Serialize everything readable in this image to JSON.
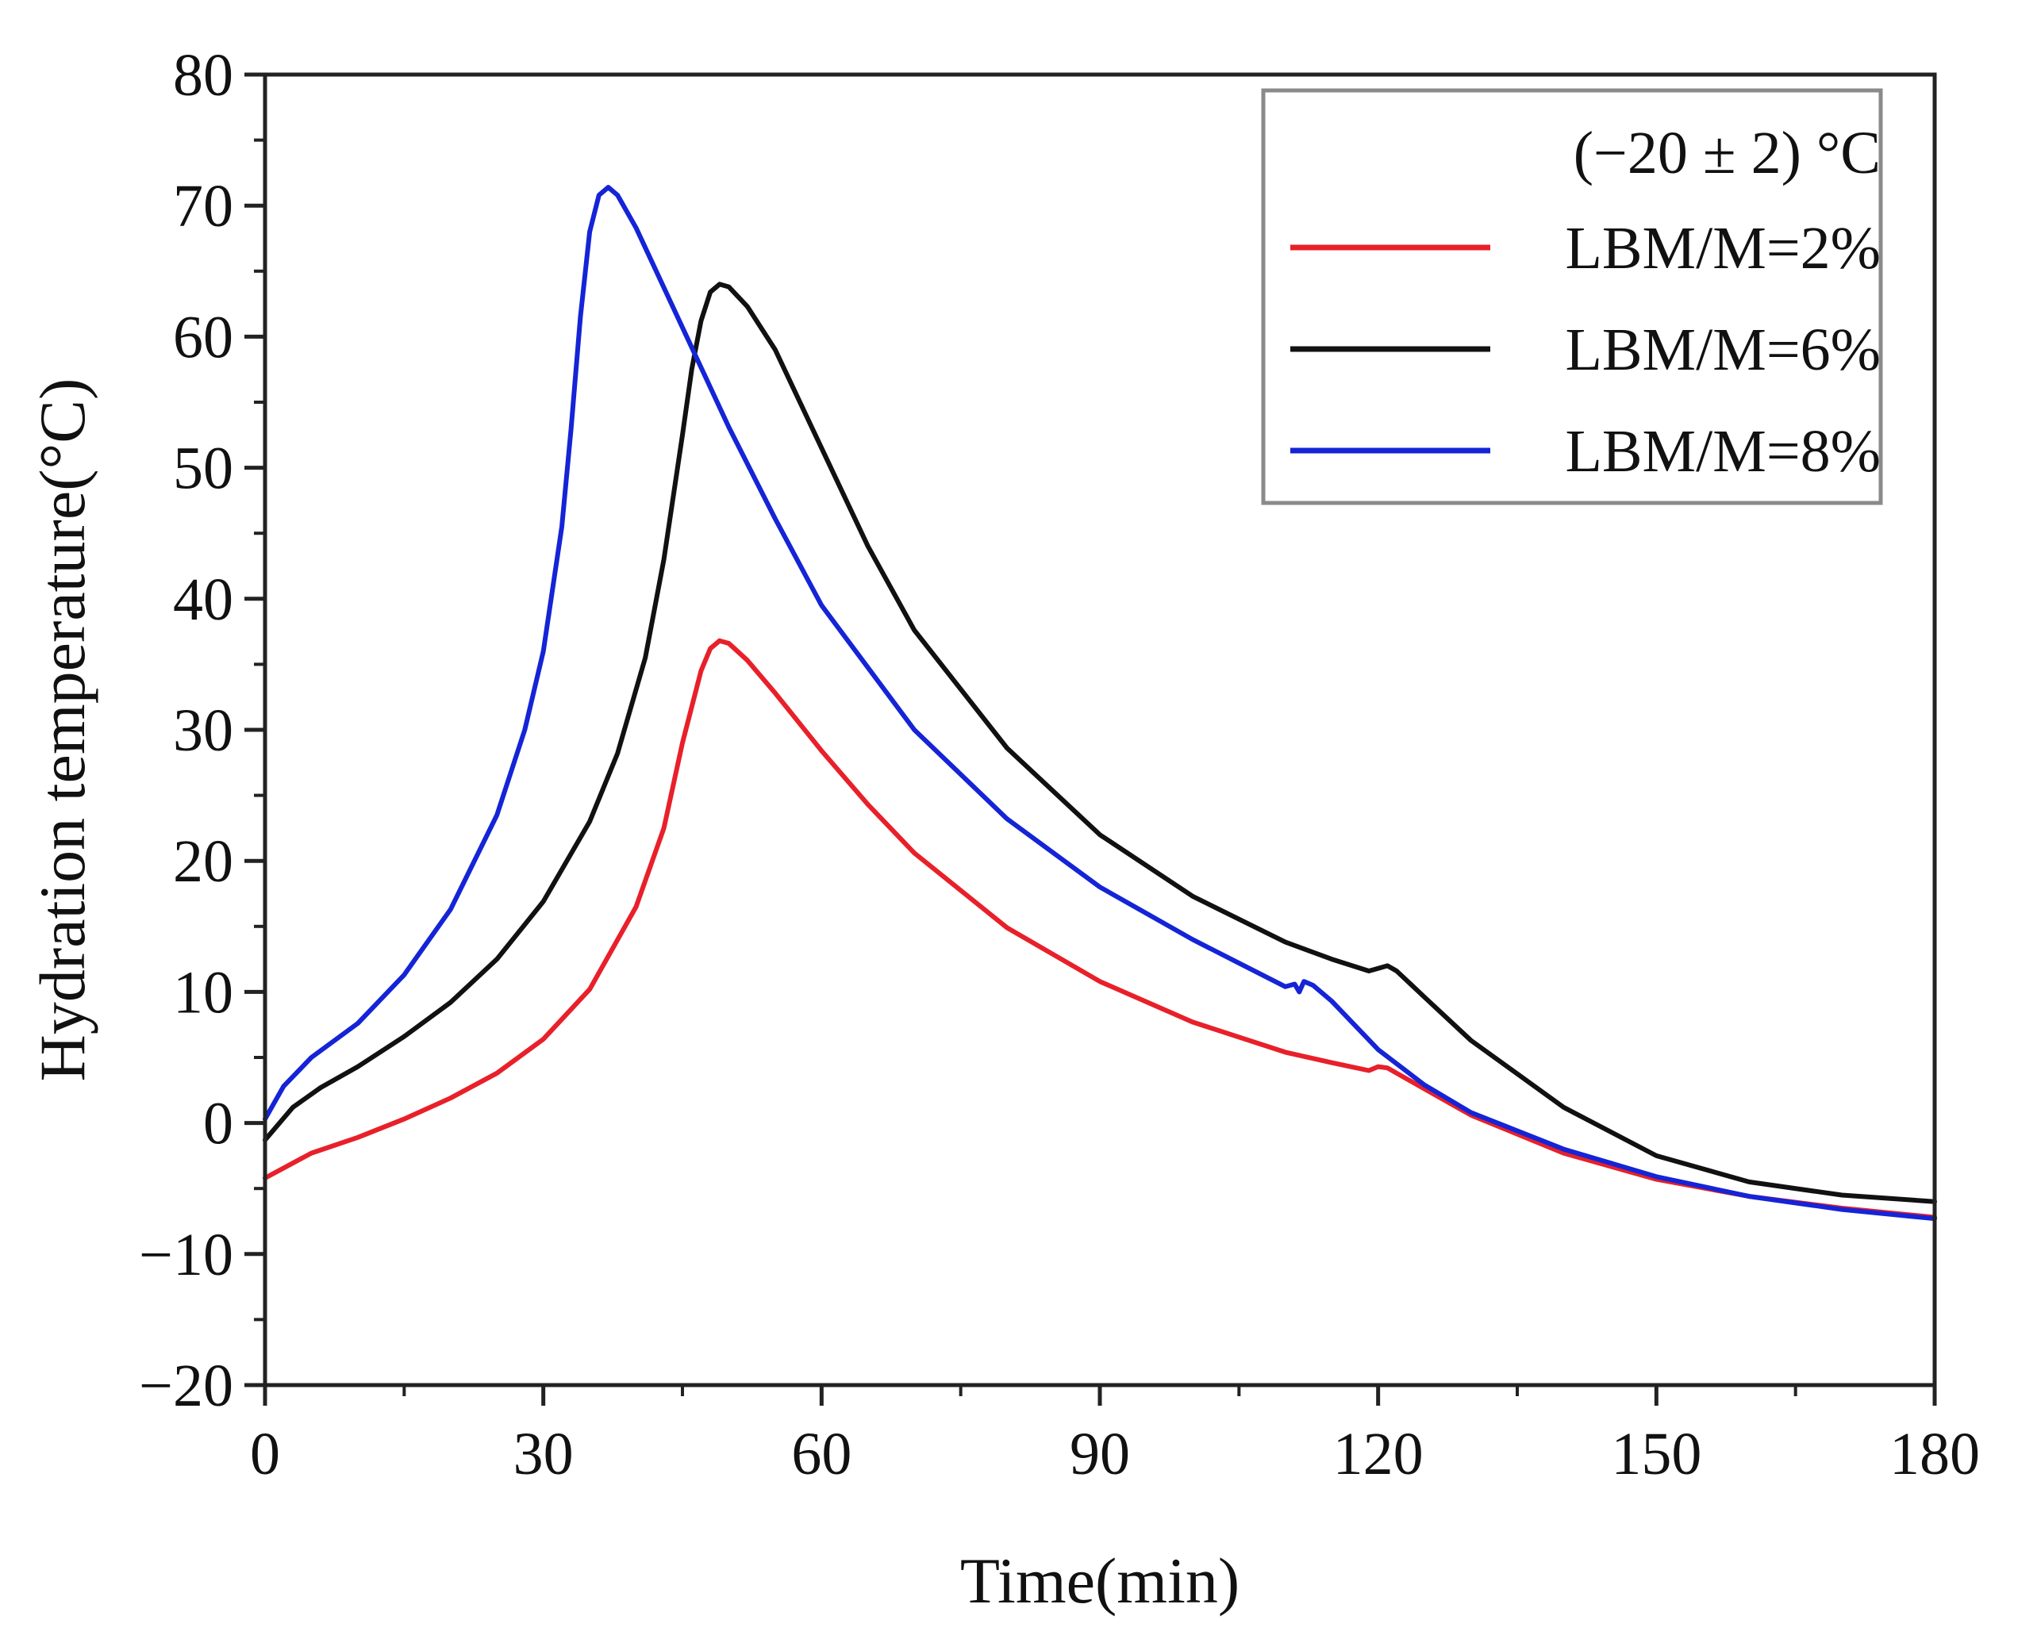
{
  "chart_data": {
    "type": "line",
    "title": "",
    "xlabel": "Time(min)",
    "ylabel": "Hydration temperature(°C)",
    "xlim": [
      0,
      180
    ],
    "ylim": [
      -20,
      80
    ],
    "xticks": [
      0,
      30,
      60,
      90,
      120,
      150,
      180
    ],
    "yticks": [
      -20,
      -10,
      0,
      10,
      20,
      30,
      40,
      50,
      60,
      70,
      80
    ],
    "xtick_labels": [
      "0",
      "30",
      "60",
      "90",
      "120",
      "150",
      "180"
    ],
    "ytick_labels": [
      "−20",
      "−10",
      "0",
      "10",
      "20",
      "30",
      "40",
      "50",
      "60",
      "70",
      "80"
    ],
    "grid": false,
    "legend": {
      "position": "top-right",
      "title": "(−20 ± 2) °C"
    },
    "series": [
      {
        "name": "LBM/M=2%",
        "color": "#e8202a",
        "x": [
          0,
          5,
          10,
          15,
          20,
          25,
          30,
          35,
          40,
          43,
          45,
          47,
          48,
          49,
          50,
          52,
          55,
          60,
          65,
          70,
          80,
          90,
          100,
          110,
          115,
          119,
          120,
          121,
          122,
          125,
          130,
          140,
          150,
          160,
          170,
          180
        ],
        "y": [
          -4.2,
          -2.3,
          -1.1,
          0.3,
          1.9,
          3.8,
          6.4,
          10.2,
          16.5,
          22.5,
          29.0,
          34.5,
          36.2,
          36.8,
          36.6,
          35.3,
          32.8,
          28.4,
          24.3,
          20.6,
          14.9,
          10.8,
          7.7,
          5.4,
          4.6,
          4.0,
          4.3,
          4.2,
          3.8,
          2.6,
          0.6,
          -2.3,
          -4.3,
          -5.6,
          -6.5,
          -7.2
        ]
      },
      {
        "name": "LBM/M=6%",
        "color": "#111111",
        "x": [
          0,
          3,
          6,
          10,
          15,
          20,
          25,
          30,
          35,
          38,
          41,
          43,
          45,
          46,
          47,
          48,
          49,
          50,
          52,
          55,
          60,
          65,
          70,
          80,
          90,
          100,
          110,
          115,
          119,
          120,
          121,
          122,
          125,
          130,
          140,
          150,
          160,
          170,
          180
        ],
        "y": [
          -1.3,
          1.2,
          2.7,
          4.3,
          6.6,
          9.2,
          12.5,
          16.9,
          23.0,
          28.2,
          35.5,
          43.0,
          52.5,
          57.5,
          61.2,
          63.4,
          64.0,
          63.8,
          62.3,
          59.0,
          51.5,
          44.0,
          37.6,
          28.6,
          22.0,
          17.3,
          13.8,
          12.5,
          11.6,
          11.8,
          12.0,
          11.6,
          9.6,
          6.3,
          1.2,
          -2.5,
          -4.5,
          -5.5,
          -6.0
        ]
      },
      {
        "name": "LBM/M=8%",
        "color": "#1424d6",
        "x": [
          0,
          2,
          5,
          10,
          15,
          20,
          25,
          28,
          30,
          32,
          33,
          34,
          35,
          36,
          37,
          38,
          40,
          45,
          50,
          55,
          60,
          70,
          80,
          90,
          100,
          105,
          110,
          111,
          111.5,
          112,
          113,
          115,
          120,
          125,
          130,
          140,
          150,
          160,
          170,
          180
        ],
        "y": [
          0.3,
          2.8,
          5.0,
          7.6,
          11.3,
          16.3,
          23.5,
          30.0,
          36.0,
          45.5,
          53.0,
          61.5,
          68.0,
          70.8,
          71.4,
          70.8,
          68.3,
          60.7,
          53.1,
          46.1,
          39.5,
          30.0,
          23.2,
          18.0,
          14.0,
          12.2,
          10.4,
          10.6,
          10.0,
          10.8,
          10.5,
          9.3,
          5.6,
          2.9,
          0.8,
          -2.0,
          -4.1,
          -5.6,
          -6.6,
          -7.3
        ]
      }
    ]
  }
}
